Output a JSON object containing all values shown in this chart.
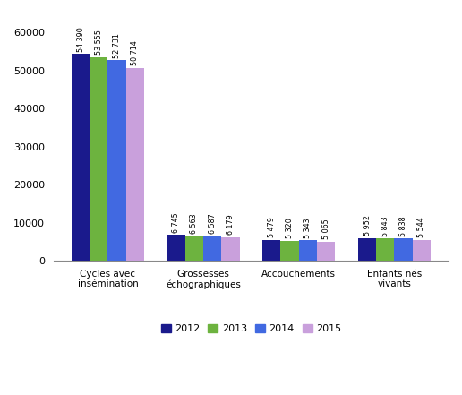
{
  "categories": [
    "Cycles avec\ninsémination",
    "Grossesses\néchographiques",
    "Accouchements",
    "Enfants nés\nvivants"
  ],
  "years": [
    "2012",
    "2013",
    "2014",
    "2015"
  ],
  "values": [
    [
      54390,
      53555,
      52731,
      50714
    ],
    [
      6745,
      6563,
      6587,
      6179
    ],
    [
      5479,
      5320,
      5343,
      5065
    ],
    [
      5952,
      5843,
      5838,
      5544
    ]
  ],
  "bar_colors": [
    "#1a1a8c",
    "#6db33f",
    "#4169e1",
    "#c9a0dc"
  ],
  "bar_labels": [
    [
      "54 390",
      "53 555",
      "52 731",
      "50 714"
    ],
    [
      "6 745",
      "6 563",
      "6 587",
      "6 179"
    ],
    [
      "5 479",
      "5 320",
      "5 343",
      "5 065"
    ],
    [
      "5 952",
      "5 843",
      "5 838",
      "5 544"
    ]
  ],
  "ylim": [
    0,
    65000
  ],
  "yticks": [
    0,
    10000,
    20000,
    30000,
    40000,
    50000,
    60000
  ],
  "ytick_labels": [
    "0",
    "10000",
    "20000",
    "30000",
    "40000",
    "50000",
    "60000"
  ],
  "legend_labels": [
    "2012",
    "2013",
    "2014",
    "2015"
  ],
  "bar_width": 0.19,
  "background_color": "#FFFFFF"
}
